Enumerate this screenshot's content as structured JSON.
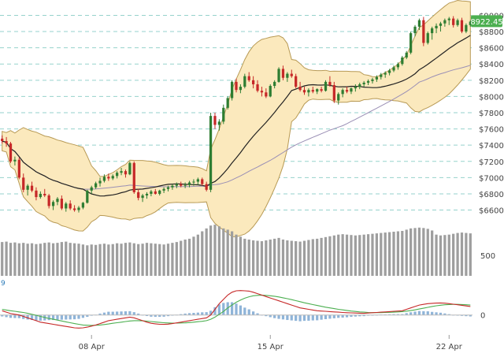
{
  "chart_data": {
    "type": "candlestick",
    "colors": {
      "up": "#2e7d32",
      "down": "#c62828",
      "band_fill": "#fbe9bd",
      "band_stroke": "#b89a55",
      "sma20": "#222222",
      "sma50": "#9a8fb5",
      "volume": "#9e9e9e",
      "macd": "#c62828",
      "signal": "#4caf50",
      "histogram": "#8fb4d8",
      "grid": "#7cc7c0",
      "last_price_badge": "#4caf50"
    },
    "price_axis": {
      "ticks": [
        "$9000",
        "$8800",
        "$8600",
        "$8400",
        "$8200",
        "$8000",
        "$7800",
        "$7600",
        "$7400",
        "$7200",
        "$7000",
        "$6800",
        "$6600"
      ],
      "tick_values": [
        9000,
        8800,
        8600,
        8400,
        8200,
        8000,
        7800,
        7600,
        7400,
        7200,
        7000,
        6800,
        6600
      ],
      "range": [
        6450,
        9150
      ]
    },
    "last_price": {
      "label": "8922.45",
      "value": 8922.45
    },
    "volume_axis": {
      "ticks": [
        "500"
      ],
      "tick_values": [
        500
      ],
      "range": [
        0,
        1300
      ]
    },
    "macd_axis": {
      "ticks": [
        "0"
      ],
      "tick_values": [
        0
      ],
      "range": [
        -140,
        220
      ]
    },
    "macd_params_label": "9",
    "x_axis": {
      "labels": [
        {
          "text": "08 Apr",
          "index": 21
        },
        {
          "text": "15 Apr",
          "index": 63
        },
        {
          "text": "22 Apr",
          "index": 105
        }
      ]
    },
    "grid": true,
    "candles": [
      [
        7480,
        7520,
        7420,
        7450
      ],
      [
        7450,
        7500,
        7380,
        7420
      ],
      [
        7420,
        7440,
        7180,
        7200
      ],
      [
        7200,
        7260,
        7150,
        7220
      ],
      [
        7220,
        7250,
        6980,
        7000
      ],
      [
        7000,
        7050,
        6820,
        6850
      ],
      [
        6850,
        6920,
        6780,
        6900
      ],
      [
        6900,
        6950,
        6820,
        6840
      ],
      [
        6840,
        6880,
        6720,
        6760
      ],
      [
        6760,
        6830,
        6740,
        6800
      ],
      [
        6800,
        6860,
        6760,
        6780
      ],
      [
        6780,
        6800,
        6620,
        6650
      ],
      [
        6650,
        6720,
        6600,
        6700
      ],
      [
        6700,
        6760,
        6660,
        6740
      ],
      [
        6740,
        6780,
        6600,
        6620
      ],
      [
        6620,
        6700,
        6580,
        6680
      ],
      [
        6680,
        6720,
        6600,
        6620
      ],
      [
        6620,
        6660,
        6580,
        6600
      ],
      [
        6600,
        6650,
        6570,
        6630
      ],
      [
        6630,
        6700,
        6610,
        6690
      ],
      [
        6690,
        6850,
        6680,
        6840
      ],
      [
        6840,
        6900,
        6800,
        6880
      ],
      [
        6880,
        6950,
        6860,
        6930
      ],
      [
        6930,
        7000,
        6890,
        6960
      ],
      [
        6960,
        7040,
        6940,
        7010
      ],
      [
        7010,
        7050,
        6960,
        6990
      ],
      [
        6990,
        7040,
        6970,
        7020
      ],
      [
        7020,
        7080,
        6990,
        7060
      ],
      [
        7060,
        7120,
        7030,
        7080
      ],
      [
        7080,
        7100,
        7000,
        7040
      ],
      [
        7040,
        7200,
        7030,
        7180
      ],
      [
        7180,
        7200,
        6800,
        6820
      ],
      [
        6820,
        6860,
        6720,
        6750
      ],
      [
        6750,
        6800,
        6700,
        6780
      ],
      [
        6780,
        6820,
        6740,
        6800
      ],
      [
        6800,
        6850,
        6770,
        6830
      ],
      [
        6830,
        6860,
        6790,
        6800
      ],
      [
        6800,
        6850,
        6780,
        6840
      ],
      [
        6840,
        6880,
        6810,
        6860
      ],
      [
        6860,
        6900,
        6830,
        6880
      ],
      [
        6880,
        6920,
        6850,
        6900
      ],
      [
        6900,
        6940,
        6870,
        6920
      ],
      [
        6920,
        6950,
        6880,
        6900
      ],
      [
        6900,
        6940,
        6870,
        6910
      ],
      [
        6910,
        6960,
        6880,
        6940
      ],
      [
        6940,
        6980,
        6900,
        6950
      ],
      [
        6950,
        7000,
        6910,
        6980
      ],
      [
        6980,
        7000,
        6900,
        6920
      ],
      [
        6920,
        6950,
        6830,
        6850
      ],
      [
        6850,
        7800,
        6820,
        7760
      ],
      [
        7760,
        7800,
        7600,
        7650
      ],
      [
        7650,
        7720,
        7580,
        7690
      ],
      [
        7690,
        7900,
        7660,
        7860
      ],
      [
        7860,
        8000,
        7840,
        7980
      ],
      [
        7980,
        8200,
        7950,
        8180
      ],
      [
        8180,
        8220,
        8050,
        8080
      ],
      [
        8080,
        8150,
        8040,
        8120
      ],
      [
        8120,
        8280,
        8100,
        8250
      ],
      [
        8250,
        8300,
        8180,
        8200
      ],
      [
        8200,
        8250,
        8100,
        8150
      ],
      [
        8150,
        8200,
        8050,
        8070
      ],
      [
        8070,
        8120,
        8000,
        8050
      ],
      [
        8050,
        8100,
        7980,
        8000
      ],
      [
        8000,
        8150,
        7990,
        8130
      ],
      [
        8130,
        8200,
        8100,
        8180
      ],
      [
        8180,
        8360,
        8170,
        8340
      ],
      [
        8340,
        8380,
        8200,
        8230
      ],
      [
        8230,
        8300,
        8180,
        8280
      ],
      [
        8280,
        8330,
        8230,
        8250
      ],
      [
        8250,
        8280,
        8100,
        8120
      ],
      [
        8120,
        8180,
        8060,
        8080
      ],
      [
        8080,
        8120,
        8020,
        8050
      ],
      [
        8050,
        8100,
        8000,
        8080
      ],
      [
        8080,
        8120,
        8040,
        8060
      ],
      [
        8060,
        8100,
        8030,
        8090
      ],
      [
        8090,
        8120,
        8050,
        8070
      ],
      [
        8070,
        8200,
        8060,
        8180
      ],
      [
        8180,
        8250,
        8120,
        8140
      ],
      [
        8140,
        8180,
        7920,
        7950
      ],
      [
        7950,
        8050,
        7900,
        8030
      ],
      [
        8030,
        8100,
        7990,
        8080
      ],
      [
        8080,
        8120,
        8040,
        8060
      ],
      [
        8060,
        8110,
        8030,
        8100
      ],
      [
        8100,
        8150,
        8060,
        8120
      ],
      [
        8120,
        8170,
        8090,
        8150
      ],
      [
        8150,
        8190,
        8120,
        8170
      ],
      [
        8170,
        8210,
        8140,
        8190
      ],
      [
        8190,
        8230,
        8160,
        8210
      ],
      [
        8210,
        8260,
        8180,
        8240
      ],
      [
        8240,
        8290,
        8210,
        8270
      ],
      [
        8270,
        8310,
        8230,
        8290
      ],
      [
        8290,
        8340,
        8260,
        8320
      ],
      [
        8320,
        8380,
        8300,
        8360
      ],
      [
        8360,
        8420,
        8330,
        8400
      ],
      [
        8400,
        8500,
        8380,
        8480
      ],
      [
        8480,
        8560,
        8460,
        8540
      ],
      [
        8540,
        8800,
        8520,
        8780
      ],
      [
        8780,
        8880,
        8740,
        8860
      ],
      [
        8860,
        8960,
        8820,
        8940
      ],
      [
        8940,
        8980,
        8620,
        8660
      ],
      [
        8660,
        8800,
        8640,
        8780
      ],
      [
        8780,
        8860,
        8700,
        8840
      ],
      [
        8840,
        8900,
        8780,
        8870
      ],
      [
        8870,
        8920,
        8800,
        8900
      ],
      [
        8900,
        8960,
        8860,
        8940
      ],
      [
        8940,
        8980,
        8880,
        8960
      ],
      [
        8960,
        8990,
        8850,
        8880
      ],
      [
        8880,
        8960,
        8860,
        8940
      ],
      [
        8940,
        8970,
        8780,
        8800
      ],
      [
        8800,
        8900,
        8780,
        8880
      ],
      [
        8880,
        8940,
        8860,
        8922.45
      ]
    ],
    "volume": [
      820,
      830,
      800,
      810,
      790,
      800,
      780,
      790,
      770,
      780,
      800,
      810,
      790,
      800,
      820,
      830,
      800,
      790,
      780,
      760,
      740,
      760,
      750,
      770,
      780,
      760,
      770,
      790,
      780,
      800,
      810,
      790,
      770,
      780,
      800,
      790,
      780,
      770,
      760,
      780,
      800,
      820,
      850,
      880,
      900,
      950,
      1000,
      1080,
      1150,
      1220,
      1240,
      1200,
      1150,
      1120,
      1080,
      1000,
      950,
      900,
      880,
      860,
      850,
      840,
      860,
      880,
      900,
      920,
      880,
      860,
      850,
      840,
      830,
      850,
      870,
      890,
      900,
      920,
      940,
      960,
      980,
      1000,
      1010,
      1000,
      990,
      980,
      990,
      1000,
      1010,
      1020,
      1030,
      1040,
      1050,
      1060,
      1070,
      1080,
      1090,
      1120,
      1150,
      1160,
      1170,
      1160,
      1140,
      1100,
      1000,
      980,
      990,
      1000,
      1020,
      1040,
      1050,
      1040,
      1030
    ],
    "macd": [
      30,
      20,
      10,
      5,
      0,
      -10,
      -20,
      -30,
      -40,
      -50,
      -55,
      -60,
      -65,
      -70,
      -75,
      -80,
      -85,
      -90,
      -92,
      -90,
      -85,
      -78,
      -70,
      -60,
      -50,
      -40,
      -35,
      -30,
      -25,
      -20,
      -15,
      -20,
      -30,
      -40,
      -50,
      -58,
      -62,
      -65,
      -66,
      -64,
      -60,
      -55,
      -50,
      -45,
      -40,
      -35,
      -30,
      -25,
      -20,
      0,
      40,
      80,
      110,
      140,
      160,
      170,
      172,
      170,
      168,
      160,
      150,
      140,
      130,
      120,
      110,
      100,
      90,
      80,
      70,
      60,
      50,
      45,
      40,
      35,
      30,
      28,
      26,
      24,
      22,
      20,
      18,
      16,
      15,
      14,
      13,
      12,
      14,
      16,
      18,
      20,
      22,
      24,
      26,
      28,
      30,
      40,
      50,
      60,
      70,
      75,
      80,
      82,
      84,
      85,
      83,
      80,
      76,
      72,
      68,
      64,
      60
    ],
    "signal": [
      40,
      35,
      30,
      26,
      22,
      18,
      12,
      5,
      -2,
      -10,
      -17,
      -24,
      -30,
      -36,
      -42,
      -48,
      -54,
      -60,
      -65,
      -70,
      -72,
      -73,
      -72,
      -70,
      -67,
      -63,
      -58,
      -54,
      -50,
      -46,
      -42,
      -40,
      -40,
      -41,
      -43,
      -46,
      -49,
      -52,
      -54,
      -56,
      -57,
      -57,
      -56,
      -55,
      -53,
      -50,
      -47,
      -44,
      -40,
      -30,
      -15,
      5,
      25,
      50,
      70,
      90,
      105,
      118,
      128,
      135,
      138,
      139,
      138,
      135,
      132,
      127,
      121,
      115,
      108,
      101,
      94,
      86,
      80,
      73,
      67,
      61,
      55,
      50,
      45,
      40,
      36,
      32,
      28,
      25,
      22,
      20,
      18,
      17,
      17,
      17,
      18,
      19,
      20,
      22,
      24,
      27,
      31,
      36,
      42,
      48,
      54,
      60,
      65,
      69,
      72,
      74,
      75,
      75,
      74,
      72,
      70
    ],
    "histogram": [
      -10,
      -15,
      -20,
      -21,
      -22,
      -28,
      -32,
      -35,
      -38,
      -40,
      -38,
      -36,
      -35,
      -34,
      -33,
      -32,
      -31,
      -30,
      -27,
      -20,
      -13,
      -5,
      2,
      10,
      17,
      23,
      23,
      24,
      25,
      26,
      27,
      20,
      10,
      1,
      -7,
      -12,
      -13,
      -13,
      -12,
      -8,
      -3,
      2,
      6,
      10,
      13,
      15,
      17,
      19,
      20,
      30,
      55,
      75,
      85,
      90,
      90,
      80,
      67,
      52,
      40,
      25,
      12,
      1,
      -8,
      -15,
      -22,
      -27,
      -31,
      -35,
      -38,
      -41,
      -44,
      -41,
      -40,
      -38,
      -37,
      -33,
      -29,
      -26,
      -23,
      -20,
      -18,
      -16,
      -13,
      -11,
      -9,
      -8,
      -4,
      -1,
      1,
      3,
      4,
      5,
      6,
      6,
      6,
      13,
      19,
      24,
      28,
      27,
      26,
      22,
      19,
      16,
      11,
      6,
      1,
      -3,
      -6,
      -8,
      -10
    ]
  }
}
